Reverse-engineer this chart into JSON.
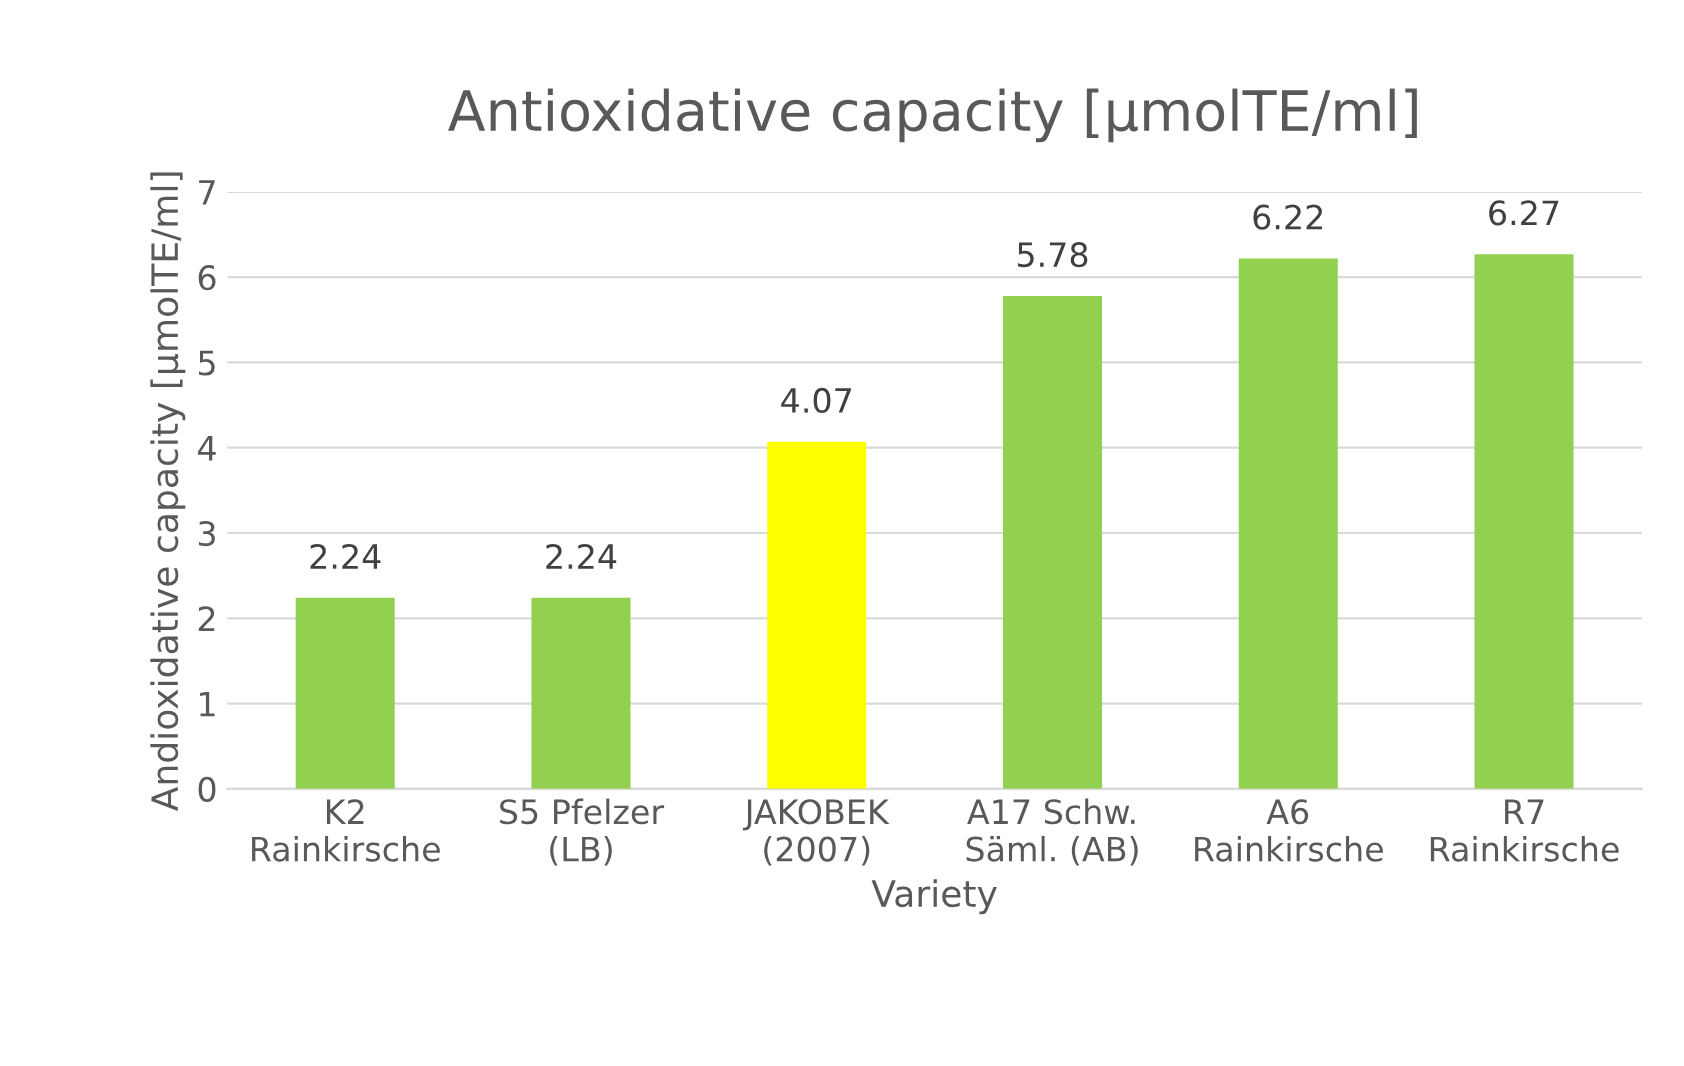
{
  "chart_data": {
    "type": "bar",
    "title": "Antioxidative capacity [µmolTE/ml]",
    "xlabel": "Variety",
    "ylabel": "Andioxidative capacity [µmolTE/ml]",
    "categories": [
      "K2\nRainkirsche",
      "S5 Pfelzer\n(LB)",
      "JAKOBEK\n(2007)",
      "A17 Schw.\nSäml. (AB)",
      "A6\nRainkirsche",
      "R7\nRainkirsche"
    ],
    "values": [
      2.24,
      2.24,
      4.07,
      5.78,
      6.22,
      6.27
    ],
    "colors": [
      "#92d050",
      "#92d050",
      "#ffff00",
      "#92d050",
      "#92d050",
      "#92d050"
    ],
    "ylim": [
      0,
      7
    ],
    "yticks": [
      0,
      1,
      2,
      3,
      4,
      5,
      6,
      7
    ],
    "grid": "y",
    "data_labels": true
  }
}
